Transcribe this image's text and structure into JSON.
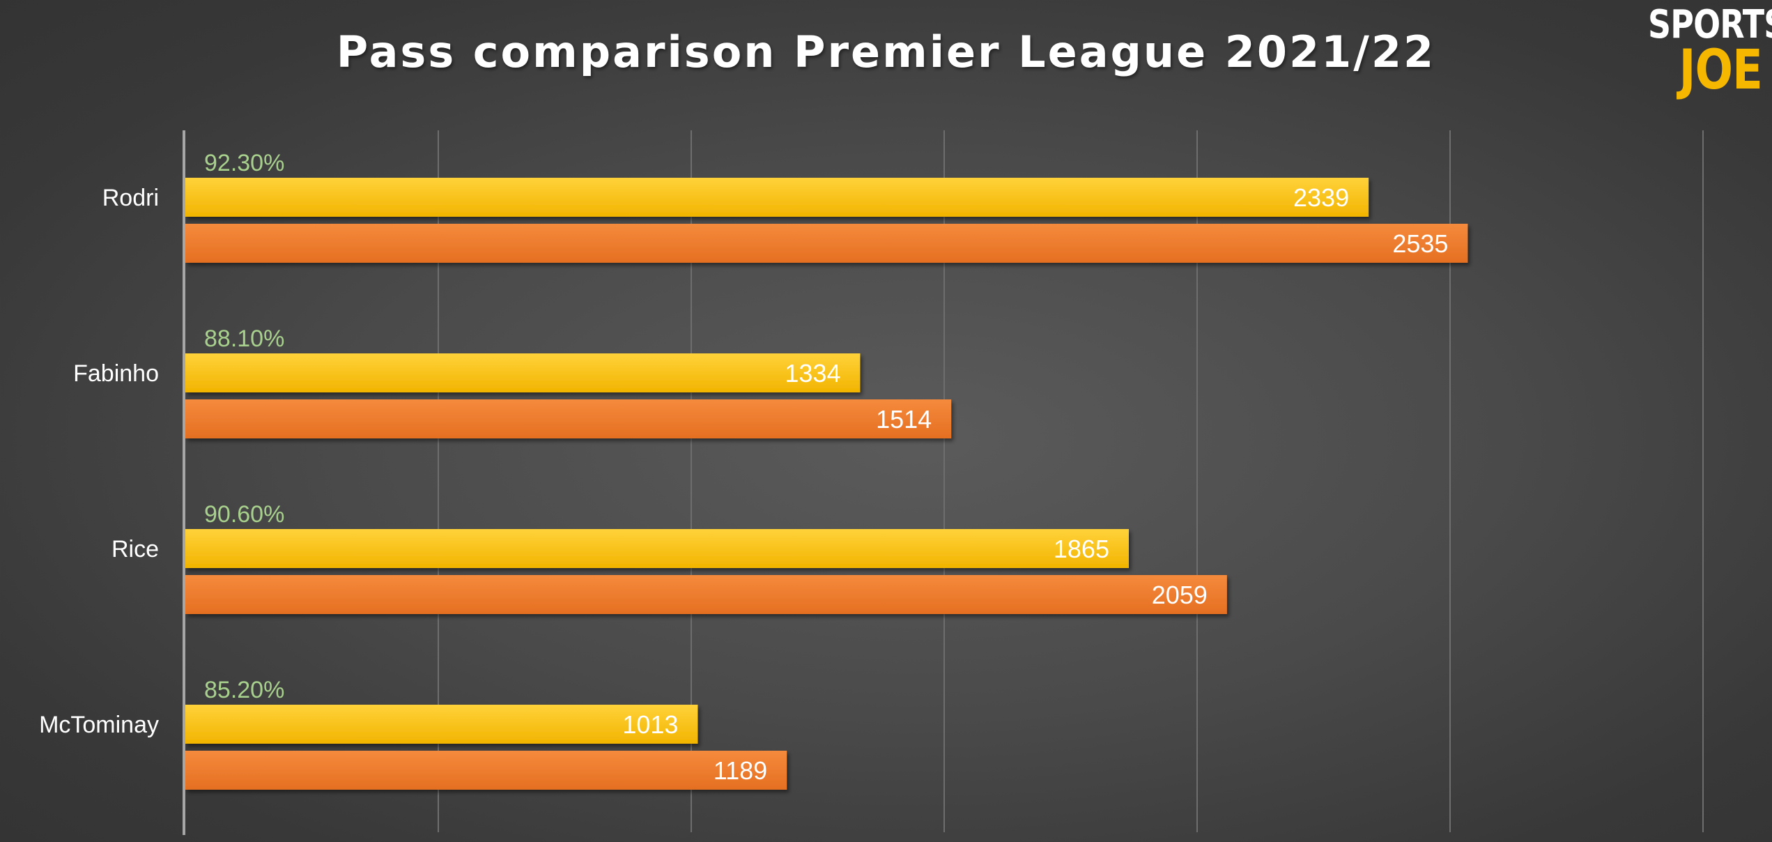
{
  "title": "Pass comparison Premier League 2021/22",
  "logo": {
    "line1": "SPORTS",
    "line2": "JOE"
  },
  "colors": {
    "yellow_bar": "#ffc000",
    "orange_bar": "#ed7d31",
    "percent_text": "#a9d18e",
    "gridline": "#6e6e6e",
    "axis": "#a6a6a6"
  },
  "chart_data": {
    "type": "bar",
    "orientation": "horizontal",
    "categories": [
      "Rodri",
      "Fabinho",
      "Rice",
      "McTominay"
    ],
    "percent_labels": [
      "92.30%",
      "88.10%",
      "90.60%",
      "85.20%"
    ],
    "series": [
      {
        "values": [
          2339,
          1334,
          1865,
          1013
        ],
        "color": "#ffc000"
      },
      {
        "values": [
          2535,
          1514,
          2059,
          1189
        ],
        "color": "#ed7d31"
      }
    ],
    "xlim": [
      0,
      3000
    ],
    "grid_step": 500,
    "grid": true,
    "legend": "none"
  }
}
